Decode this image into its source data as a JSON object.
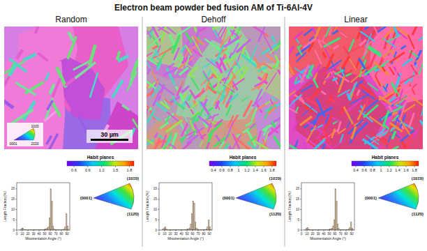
{
  "figure": {
    "title": "Electron beam powder bed fusion AM of Ti-6Al-4V",
    "scale_bar": "30 µm",
    "ipf_key": [
      "101̄0",
      "0001",
      "21̄1̄0"
    ],
    "panels": [
      {
        "title": "Random",
        "colorbar": {
          "label": "Habit planes",
          "range": [
            0.45,
            1.9
          ],
          "ticks": [
            0.6,
            0.9,
            1.2,
            1.5,
            1.8
          ]
        },
        "ipf_labels": [
          "(0001)",
          "(101̄0)",
          "(112̄0)"
        ]
      },
      {
        "title": "Dehoff",
        "colorbar": {
          "label": "Habit planes",
          "range": [
            0.3,
            1.9
          ],
          "ticks": [
            0.4,
            0.6,
            0.8,
            1,
            1.2,
            1.4,
            1.6,
            1.8
          ]
        },
        "ipf_labels": [
          "(0001)",
          "(101̄0)",
          "(112̄0)"
        ]
      },
      {
        "title": "Linear",
        "colorbar": {
          "label": "Habit planes",
          "range": [
            0.3,
            1.9
          ],
          "ticks": [
            0.4,
            0.6,
            0.8,
            1,
            1.2,
            1.4,
            1.6,
            1.8
          ]
        },
        "ipf_labels": [
          "(0001)",
          "(101̄0)",
          "(112̄0)"
        ]
      }
    ]
  },
  "chart_data": [
    {
      "type": "histogram",
      "x_label": "Misorientation Angle (°)",
      "y_label": "Length Fraction (%)",
      "color": "#c9b59c",
      "bins": [
        4,
        6,
        8,
        10,
        12,
        14,
        16,
        18,
        20,
        22,
        24,
        26,
        28,
        30,
        32,
        34,
        36,
        38,
        40,
        42,
        44,
        46,
        48,
        50,
        52,
        54,
        56,
        58,
        60,
        62,
        64,
        66,
        68,
        70,
        72,
        74,
        76,
        78,
        80,
        82,
        84,
        86,
        88,
        90,
        92,
        94
      ],
      "values": [
        0,
        0.3,
        0.8,
        1.0,
        0.3,
        0.1,
        0.1,
        0.1,
        0.1,
        0.1,
        0.1,
        0.1,
        0.1,
        0.1,
        0.1,
        0.1,
        0.1,
        0.2,
        0.2,
        0.2,
        0.2,
        0.2,
        0.3,
        0.4,
        0.6,
        1.0,
        1.5,
        6,
        20,
        14,
        2,
        0.5,
        0.3,
        0.2,
        0.2,
        0.2,
        0.2,
        0.2,
        0.2,
        0.3,
        0.5,
        1.5,
        8,
        2,
        0.3
      ],
      "xlim": [
        0,
        95
      ],
      "ylim": [
        0,
        23
      ],
      "xticks": [
        0,
        10,
        20,
        30,
        40,
        50,
        60,
        70,
        80,
        90
      ],
      "yticks": [
        0,
        5,
        10,
        15,
        20
      ]
    },
    {
      "type": "histogram",
      "x_label": "Misorientation Angle (°)",
      "y_label": "Length Fraction (%)",
      "color": "#c9b59c",
      "bins": [
        4,
        6,
        8,
        10,
        12,
        14,
        16,
        18,
        20,
        22,
        24,
        26,
        28,
        30,
        32,
        34,
        36,
        38,
        40,
        42,
        44,
        46,
        48,
        50,
        52,
        54,
        56,
        58,
        60,
        62,
        64,
        66,
        68,
        70,
        72,
        74,
        76,
        78,
        80,
        82,
        84,
        86,
        88,
        90,
        92,
        94
      ],
      "values": [
        0,
        0.4,
        1.0,
        1.5,
        0.5,
        0.2,
        0.2,
        0.2,
        0.2,
        0.2,
        0.2,
        0.2,
        0.2,
        0.2,
        0.2,
        0.2,
        0.2,
        0.2,
        0.2,
        0.2,
        0.2,
        0.2,
        0.3,
        0.4,
        0.5,
        1.0,
        3,
        8,
        14,
        13,
        4,
        1,
        0.4,
        0.2,
        0.2,
        0.2,
        0.2,
        0.2,
        0.2,
        0.3,
        0.6,
        1.5,
        5,
        1.5,
        0.3
      ],
      "xlim": [
        0,
        95
      ],
      "ylim": [
        0,
        23
      ],
      "xticks": [
        0,
        10,
        20,
        30,
        40,
        50,
        60,
        70,
        80,
        90
      ],
      "yticks": [
        0,
        5,
        10,
        15,
        20
      ]
    },
    {
      "type": "histogram",
      "x_label": "Misorientation Angle (°)",
      "y_label": "Length Fraction (%)",
      "color": "#c9b59c",
      "bins": [
        4,
        6,
        8,
        10,
        12,
        14,
        16,
        18,
        20,
        22,
        24,
        26,
        28,
        30,
        32,
        34,
        36,
        38,
        40,
        42,
        44,
        46,
        48,
        50,
        52,
        54,
        56,
        58,
        60,
        62,
        64,
        66,
        68,
        70,
        72,
        74,
        76,
        78,
        80,
        82,
        84,
        86,
        88,
        90,
        92,
        94
      ],
      "values": [
        0,
        0.3,
        0.8,
        1.2,
        0.4,
        0.1,
        0.1,
        0.1,
        0.1,
        0.1,
        0.1,
        0.1,
        0.1,
        0.1,
        0.1,
        0.1,
        0.1,
        0.2,
        0.2,
        0.2,
        0.2,
        0.2,
        0.3,
        0.4,
        0.6,
        0.9,
        2,
        5,
        20,
        14,
        3,
        0.8,
        0.3,
        0.2,
        0.2,
        0.2,
        0.2,
        0.2,
        0.2,
        0.3,
        0.4,
        1.2,
        4,
        1,
        0.2
      ],
      "xlim": [
        0,
        95
      ],
      "ylim": [
        0,
        23
      ],
      "xticks": [
        0,
        10,
        20,
        30,
        40,
        50,
        60,
        70,
        80,
        90
      ],
      "yticks": [
        0,
        5,
        10,
        15,
        20
      ]
    }
  ]
}
